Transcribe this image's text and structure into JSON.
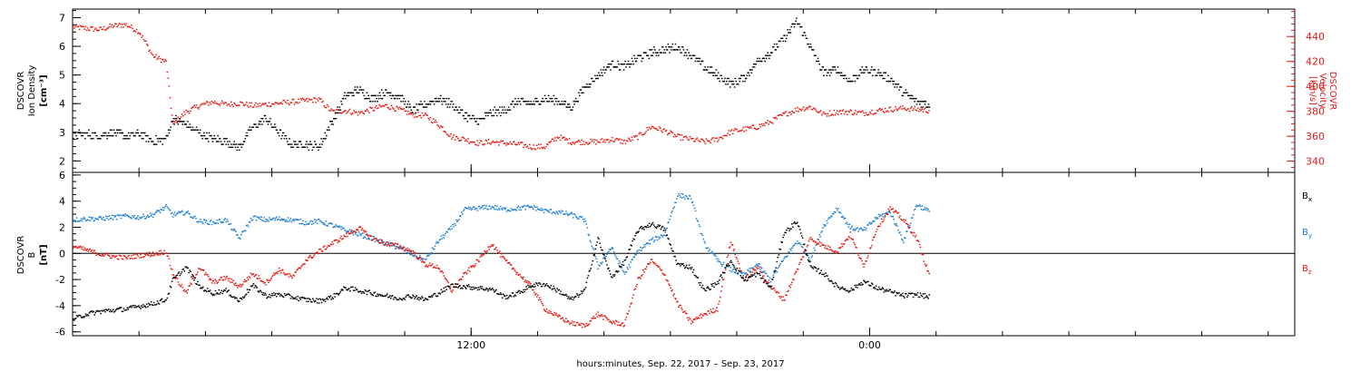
{
  "colors": {
    "black": "#000000",
    "red": "#e8150c",
    "blue": "#1a7fd4",
    "red_axis": "#e01a1a"
  },
  "xlabel": "hours:minutes, Sep. 22, 2017 – Sep. 23, 2017",
  "chart_data": [
    {
      "type": "scatter",
      "panel": "plasma",
      "x_unit": "hours since Sep. 22, 2017 00:00",
      "x_range": [
        0.0,
        36.8
      ],
      "x_ticks": [
        {
          "x": 12,
          "label": "12:00"
        },
        {
          "x": 24,
          "label": "0:00"
        }
      ],
      "x_minor_step": 2,
      "ylabel_lines": [
        "DSCOVR",
        "Ion Density"
      ],
      "yunit_left": "[cm⁻³]",
      "ylim_left": [
        1.6,
        7.3
      ],
      "yticks_left": [
        2,
        3,
        4,
        5,
        6,
        7
      ],
      "ylabel_right_lines": [
        "DSCOVR",
        "Velocity"
      ],
      "yunit_right": "[km/s]",
      "ylim_right": [
        331,
        462
      ],
      "yticks_right": [
        340,
        360,
        380,
        400,
        420,
        440
      ],
      "series": [
        {
          "name": "Ion Density",
          "color": "black",
          "axis": "left",
          "x": [
            0.0,
            0.4,
            0.8,
            1.2,
            1.6,
            2.0,
            2.4,
            2.8,
            3.0,
            3.4,
            3.8,
            4.2,
            4.6,
            5.0,
            5.4,
            5.8,
            6.2,
            6.6,
            7.0,
            7.4,
            7.8,
            8.2,
            8.6,
            9.0,
            9.4,
            9.8,
            10.2,
            10.6,
            11.0,
            11.4,
            11.8,
            12.2,
            12.6,
            13.0,
            13.4,
            13.8,
            14.2,
            14.6,
            15.0,
            15.4,
            15.8,
            16.2,
            16.6,
            17.0,
            17.4,
            17.8,
            18.2,
            18.6,
            19.0,
            19.4,
            19.8,
            20.2,
            20.6,
            21.0,
            21.4,
            21.8,
            22.2,
            22.6,
            23.0,
            23.4,
            23.8,
            24.2,
            24.6,
            25.0,
            25.4,
            25.8
          ],
          "y": [
            2.9,
            2.95,
            2.9,
            3.0,
            2.9,
            2.95,
            2.7,
            2.8,
            3.5,
            3.3,
            3.0,
            2.8,
            2.7,
            2.5,
            3.2,
            3.5,
            3.0,
            2.6,
            2.6,
            2.5,
            3.4,
            4.3,
            4.5,
            4.2,
            4.4,
            4.3,
            3.8,
            4.0,
            4.2,
            4.0,
            3.6,
            3.4,
            3.7,
            3.8,
            4.1,
            4.0,
            4.2,
            4.1,
            3.9,
            4.6,
            5.0,
            5.4,
            5.3,
            5.6,
            5.8,
            5.9,
            6.0,
            5.7,
            5.3,
            5.0,
            4.7,
            4.9,
            5.5,
            5.8,
            6.3,
            6.9,
            6.0,
            5.1,
            5.2,
            4.8,
            5.2,
            5.1,
            4.9,
            4.4,
            4.1,
            3.95
          ]
        },
        {
          "name": "Velocity",
          "color": "red",
          "axis": "right",
          "x": [
            0.0,
            0.4,
            0.8,
            1.2,
            1.6,
            2.0,
            2.4,
            2.8,
            3.0,
            3.4,
            3.8,
            4.2,
            4.6,
            5.0,
            5.4,
            5.8,
            6.2,
            6.6,
            7.0,
            7.4,
            7.8,
            8.2,
            8.6,
            9.0,
            9.4,
            9.8,
            10.2,
            10.6,
            11.0,
            11.4,
            11.8,
            12.2,
            12.6,
            13.0,
            13.4,
            13.8,
            14.2,
            14.6,
            15.0,
            15.4,
            15.8,
            16.2,
            16.6,
            17.0,
            17.4,
            17.8,
            18.2,
            18.6,
            19.0,
            19.4,
            19.8,
            20.2,
            20.6,
            21.0,
            21.4,
            21.8,
            22.2,
            22.6,
            23.0,
            23.4,
            23.8,
            24.2,
            24.6,
            25.0,
            25.4,
            25.8
          ],
          "y": [
            448,
            447,
            446,
            449,
            450,
            444,
            425,
            420,
            370,
            380,
            385,
            388,
            386,
            387,
            385,
            386,
            387,
            388,
            389,
            390,
            380,
            381,
            379,
            382,
            385,
            382,
            378,
            377,
            370,
            360,
            358,
            355,
            356,
            355,
            354,
            352,
            352,
            360,
            356,
            356,
            356,
            358,
            356,
            360,
            368,
            365,
            360,
            358,
            356,
            358,
            364,
            366,
            368,
            372,
            378,
            382,
            384,
            378,
            380,
            380,
            379,
            381,
            382,
            383,
            382,
            381
          ]
        }
      ]
    },
    {
      "type": "scatter",
      "panel": "magnetic",
      "x_unit": "hours since Sep. 22, 2017 00:00",
      "x_range": [
        0.0,
        36.8
      ],
      "ylabel_lines": [
        "DSCOVR",
        "B"
      ],
      "yunit_left": "[nT]",
      "ylim_left": [
        -6.3,
        6.2
      ],
      "yticks_left": [
        -6,
        -4,
        -2,
        0,
        2,
        4,
        6
      ],
      "zero_line": true,
      "legend": [
        "B",
        "B",
        "B"
      ],
      "legend_subscripts": [
        "x",
        "y",
        "z"
      ],
      "series": [
        {
          "name": "B",
          "subscript": "x",
          "color": "black",
          "x": [
            0.0,
            0.4,
            0.8,
            1.2,
            1.6,
            2.0,
            2.4,
            2.8,
            3.0,
            3.4,
            3.8,
            4.2,
            4.6,
            5.0,
            5.4,
            5.8,
            6.2,
            6.6,
            7.0,
            7.4,
            7.8,
            8.2,
            8.6,
            9.0,
            9.4,
            9.8,
            10.2,
            10.6,
            11.0,
            11.4,
            11.8,
            12.2,
            12.6,
            13.0,
            13.4,
            13.8,
            14.2,
            14.6,
            15.0,
            15.4,
            15.8,
            16.2,
            16.6,
            17.0,
            17.4,
            17.8,
            18.2,
            18.6,
            19.0,
            19.4,
            19.8,
            20.2,
            20.6,
            21.0,
            21.4,
            21.8,
            22.2,
            22.6,
            23.0,
            23.4,
            23.8,
            24.2,
            24.6,
            25.0,
            25.4,
            25.8
          ],
          "y": [
            -5.0,
            -4.6,
            -4.4,
            -4.3,
            -4.2,
            -4.0,
            -3.8,
            -3.5,
            -2.0,
            -1.0,
            -2.5,
            -3.0,
            -2.8,
            -3.6,
            -2.4,
            -3.2,
            -3.1,
            -3.3,
            -3.5,
            -3.6,
            -3.3,
            -2.6,
            -2.8,
            -3.0,
            -3.2,
            -3.4,
            -3.2,
            -3.5,
            -3.0,
            -2.4,
            -2.5,
            -2.6,
            -2.7,
            -3.3,
            -3.0,
            -2.4,
            -2.3,
            -2.8,
            -3.5,
            -2.8,
            1.2,
            -1.8,
            -0.6,
            1.8,
            2.3,
            1.9,
            -0.8,
            -1.0,
            -2.8,
            -2.2,
            -0.5,
            -2.0,
            -1.5,
            -2.6,
            1.6,
            2.5,
            -1.0,
            -1.5,
            -2.5,
            -2.8,
            -2.1,
            -2.6,
            -2.9,
            -3.2,
            -3.1,
            -3.3
          ]
        },
        {
          "name": "B",
          "subscript": "y",
          "color": "blue",
          "x": [
            0.0,
            0.4,
            0.8,
            1.2,
            1.6,
            2.0,
            2.4,
            2.8,
            3.0,
            3.4,
            3.8,
            4.2,
            4.6,
            5.0,
            5.4,
            5.8,
            6.2,
            6.6,
            7.0,
            7.4,
            7.8,
            8.2,
            8.6,
            9.0,
            9.4,
            9.8,
            10.2,
            10.6,
            11.0,
            11.4,
            11.8,
            12.2,
            12.6,
            13.0,
            13.4,
            13.8,
            14.2,
            14.6,
            15.0,
            15.4,
            15.8,
            16.2,
            16.6,
            17.0,
            17.4,
            17.8,
            18.2,
            18.6,
            19.0,
            19.4,
            19.8,
            20.2,
            20.6,
            21.0,
            21.4,
            21.8,
            22.2,
            22.6,
            23.0,
            23.4,
            23.8,
            24.2,
            24.6,
            25.0,
            25.4,
            25.8
          ],
          "y": [
            2.6,
            2.7,
            2.7,
            2.8,
            2.9,
            2.8,
            3.0,
            3.6,
            3.0,
            3.2,
            2.5,
            2.4,
            2.6,
            1.2,
            2.8,
            2.6,
            2.7,
            2.6,
            2.4,
            2.5,
            2.2,
            1.8,
            1.5,
            1.2,
            0.8,
            0.5,
            0.0,
            -0.5,
            1.0,
            2.0,
            3.4,
            3.5,
            3.6,
            3.4,
            3.5,
            3.6,
            3.3,
            3.2,
            3.0,
            2.6,
            -1.0,
            0.5,
            -1.5,
            0.2,
            1.0,
            1.5,
            4.5,
            4.3,
            0.8,
            -0.5,
            -1.2,
            -1.6,
            -0.8,
            -2.0,
            -0.4,
            1.0,
            -0.4,
            2.2,
            3.5,
            2.0,
            1.8,
            2.8,
            3.2,
            1.0,
            3.8,
            3.2
          ]
        },
        {
          "name": "B",
          "subscript": "z",
          "color": "red",
          "x": [
            0.0,
            0.4,
            0.8,
            1.2,
            1.6,
            2.0,
            2.4,
            2.8,
            3.0,
            3.4,
            3.8,
            4.2,
            4.6,
            5.0,
            5.4,
            5.8,
            6.2,
            6.6,
            7.0,
            7.4,
            7.8,
            8.2,
            8.6,
            9.0,
            9.4,
            9.8,
            10.2,
            10.6,
            11.0,
            11.4,
            11.8,
            12.2,
            12.6,
            13.0,
            13.4,
            13.8,
            14.2,
            14.6,
            15.0,
            15.4,
            15.8,
            16.2,
            16.6,
            17.0,
            17.4,
            17.8,
            18.2,
            18.6,
            19.0,
            19.4,
            19.8,
            20.2,
            20.6,
            21.0,
            21.4,
            21.8,
            22.2,
            22.6,
            23.0,
            23.4,
            23.8,
            24.2,
            24.6,
            25.0,
            25.4,
            25.8
          ],
          "y": [
            0.6,
            0.3,
            0.0,
            -0.2,
            -0.3,
            -0.1,
            0.0,
            0.2,
            -1.5,
            -3.0,
            -1.0,
            -2.2,
            -1.8,
            -2.5,
            -1.5,
            -2.2,
            -1.2,
            -1.8,
            -0.5,
            0.2,
            0.8,
            1.4,
            2.0,
            1.2,
            0.8,
            0.6,
            0.2,
            -0.8,
            -1.0,
            -2.8,
            -1.5,
            -0.5,
            0.8,
            -0.5,
            -1.5,
            -2.5,
            -4.2,
            -4.8,
            -5.3,
            -5.5,
            -4.6,
            -5.2,
            -5.4,
            -2.0,
            -0.5,
            -1.5,
            -3.8,
            -5.2,
            -4.6,
            -4.2,
            1.0,
            -2.0,
            -1.0,
            -2.5,
            -3.5,
            -1.2,
            1.2,
            0.6,
            0.2,
            1.5,
            -1.0,
            2.0,
            3.5,
            2.6,
            1.2,
            -1.8
          ]
        }
      ]
    }
  ]
}
